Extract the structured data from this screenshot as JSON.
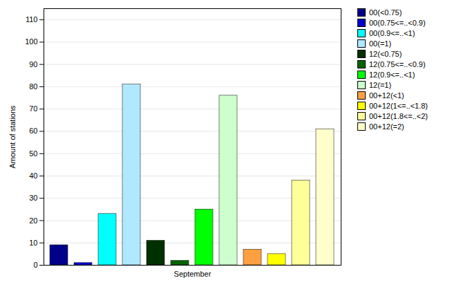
{
  "chart_data": {
    "type": "bar",
    "categories": [
      "September"
    ],
    "series": [
      {
        "name": "00(<0.75)",
        "color": "#00008B",
        "values": [
          9
        ]
      },
      {
        "name": "00(0.75<=..<0.9)",
        "color": "#0000CD",
        "values": [
          1
        ]
      },
      {
        "name": "00(0.9<=..<1)",
        "color": "#00FFFF",
        "values": [
          23
        ]
      },
      {
        "name": "00(=1)",
        "color": "#B0E8FF",
        "values": [
          81
        ]
      },
      {
        "name": "12(<0.75)",
        "color": "#003000",
        "values": [
          11
        ]
      },
      {
        "name": "12(0.75<=..<0.9)",
        "color": "#006400",
        "values": [
          2
        ]
      },
      {
        "name": "12(0.9<=..<1)",
        "color": "#00FF00",
        "values": [
          25
        ]
      },
      {
        "name": "12(=1)",
        "color": "#CCFFCC",
        "values": [
          76
        ]
      },
      {
        "name": "00+12(<1)",
        "color": "#FFA040",
        "values": [
          7
        ]
      },
      {
        "name": "00+12(1<=..<1.8)",
        "color": "#FFFF00",
        "values": [
          5
        ]
      },
      {
        "name": "00+12(1.8<=..<2)",
        "color": "#FFFF99",
        "values": [
          38
        ]
      },
      {
        "name": "00+12(=2)",
        "color": "#FFFFCC",
        "values": [
          61
        ]
      }
    ],
    "ylabel": "Amount of stations",
    "ylim": [
      0,
      115
    ],
    "yticks": [
      0,
      10,
      20,
      30,
      40,
      50,
      60,
      70,
      80,
      90,
      100,
      110
    ],
    "grid": true,
    "legend": "upper right"
  }
}
